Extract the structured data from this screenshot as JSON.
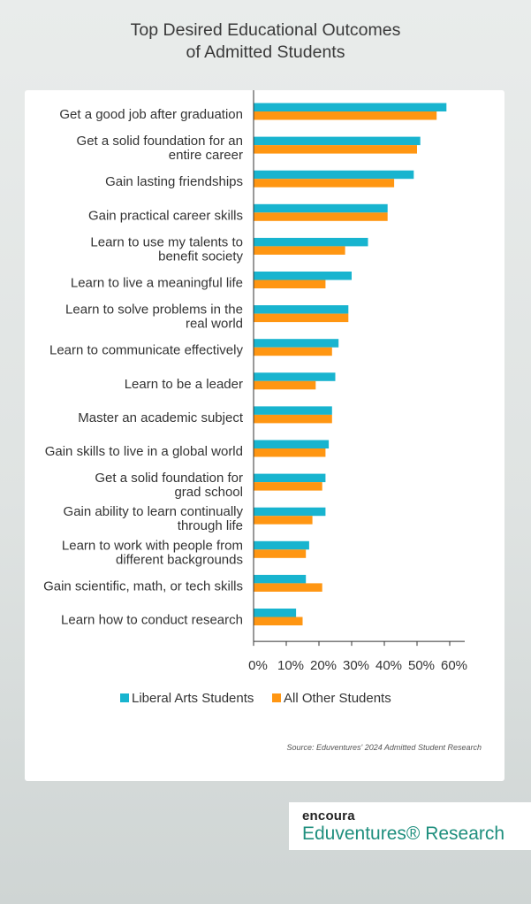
{
  "title_line1": "Top Desired Educational Outcomes",
  "title_line2": "of Admitted Students",
  "source": "Source: Eduventures' 2024 Admitted Student Research",
  "logo": {
    "brand": "encoura",
    "product": "Eduventures® Research"
  },
  "colors": {
    "liberal_arts": "#18b4cf",
    "all_other": "#ff9612",
    "axis": "#333333"
  },
  "chart_data": {
    "type": "bar",
    "orientation": "horizontal",
    "categories": [
      [
        "Get a good job after graduation"
      ],
      [
        "Get a solid foundation for an",
        "entire career"
      ],
      [
        "Gain lasting friendships"
      ],
      [
        "Gain practical career skills"
      ],
      [
        "Learn to use my talents to",
        "benefit society"
      ],
      [
        "Learn to live a meaningful life"
      ],
      [
        "Learn to solve problems in the",
        "real world"
      ],
      [
        "Learn to communicate effectively"
      ],
      [
        "Learn to be a leader"
      ],
      [
        "Master an academic subject"
      ],
      [
        "Gain skills to live in a global world"
      ],
      [
        "Get a solid foundation for",
        "grad school"
      ],
      [
        "Gain ability to learn continually",
        "through life"
      ],
      [
        "Learn to work with people from",
        "different backgrounds"
      ],
      [
        "Gain scientific, math, or tech skills"
      ],
      [
        "Learn how to conduct research"
      ]
    ],
    "series": [
      {
        "name": "Liberal Arts Students",
        "values": [
          59,
          51,
          49,
          41,
          35,
          30,
          29,
          26,
          25,
          24,
          23,
          22,
          22,
          17,
          16,
          13
        ]
      },
      {
        "name": "All Other Students",
        "values": [
          56,
          50,
          43,
          41,
          28,
          22,
          29,
          24,
          19,
          24,
          22,
          21,
          18,
          16,
          21,
          15
        ]
      }
    ],
    "xlim": [
      0,
      60
    ],
    "xticks": [
      "0%",
      "10%",
      "20%",
      "30%",
      "40%",
      "50%",
      "60%"
    ],
    "grid": false,
    "legend": "bottom"
  }
}
